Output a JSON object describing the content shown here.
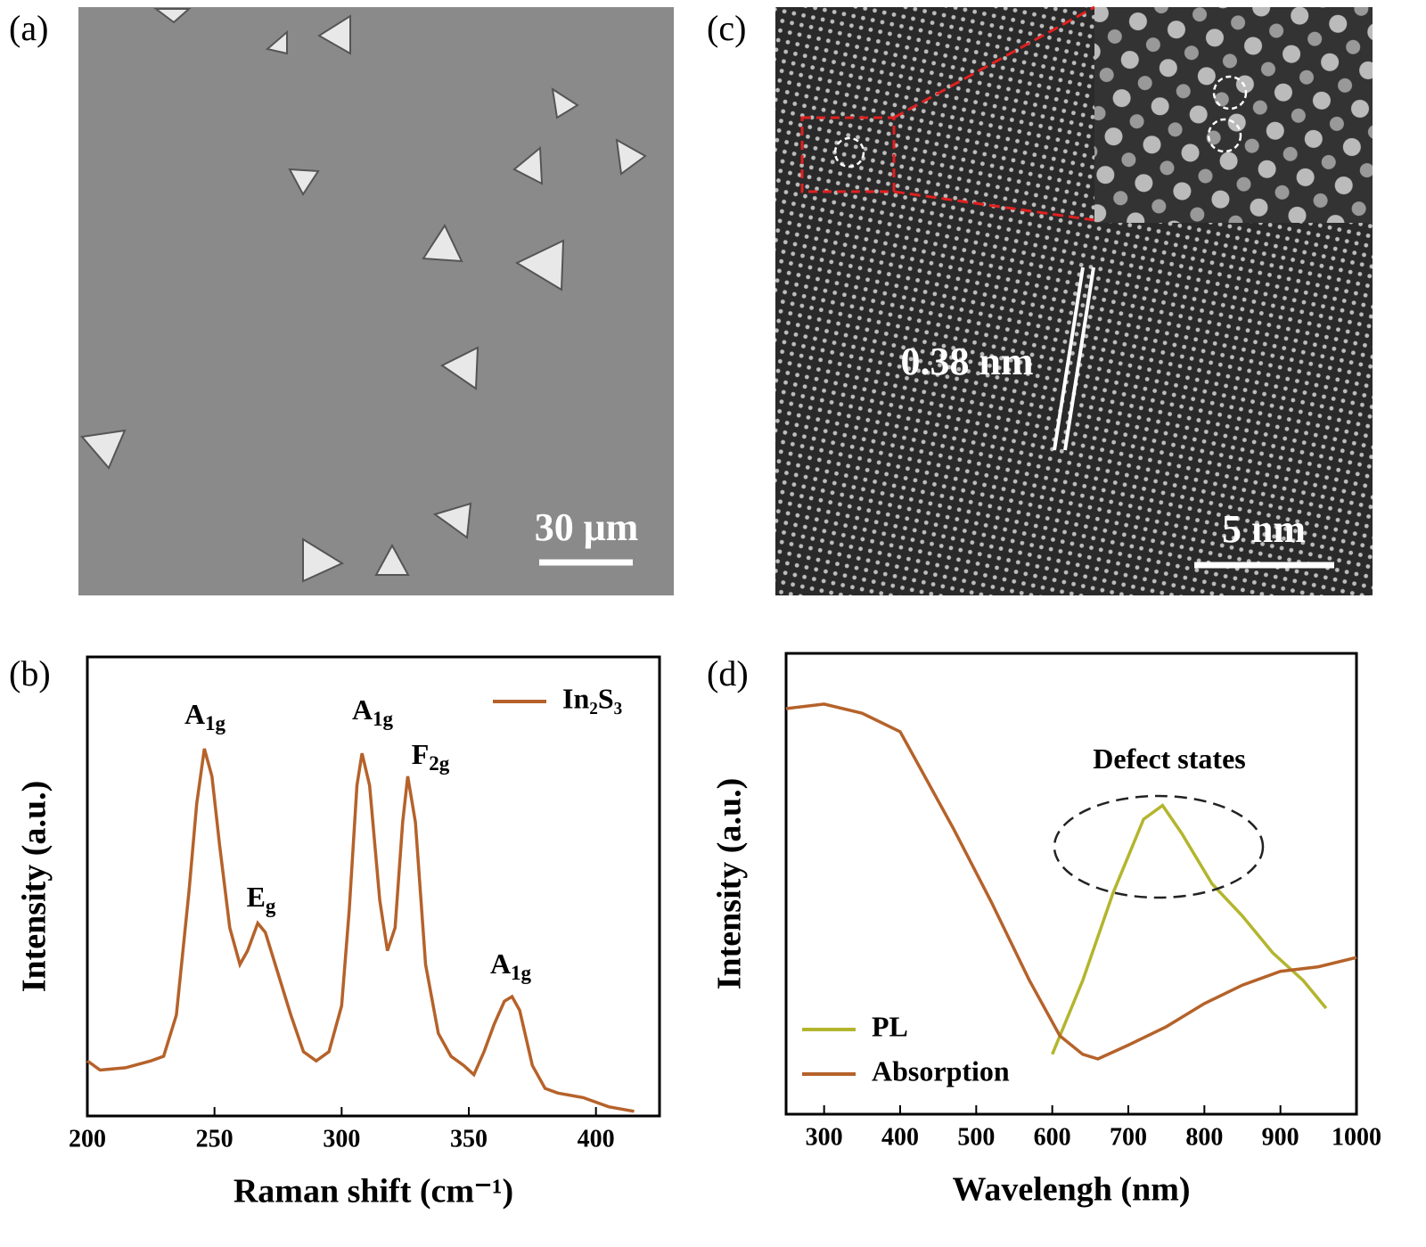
{
  "panels": {
    "a": {
      "label": "(a)",
      "scale_bar": "30 μm"
    },
    "b": {
      "label": "(b)"
    },
    "c": {
      "label": "(c)",
      "scale_bar": "5 nm",
      "annotation": "0.38 nm"
    },
    "d": {
      "label": "(d)"
    }
  },
  "chart_data": [
    {
      "type": "line",
      "xlabel": "Raman shift (cm⁻¹)",
      "ylabel": "Intensity (a.u.)",
      "xlim": [
        200,
        425
      ],
      "ylim": [
        0,
        100
      ],
      "xticks": [
        200,
        250,
        300,
        350,
        400
      ],
      "legend": "upper right",
      "series": [
        {
          "name": "In₂S₃",
          "color": "#b5622a",
          "x": [
            200,
            205,
            215,
            225,
            230,
            235,
            240,
            243,
            246,
            249,
            252,
            256,
            260,
            263,
            267,
            270,
            275,
            280,
            285,
            290,
            295,
            300,
            303,
            306,
            308,
            311,
            315,
            318,
            321,
            324,
            326,
            329,
            333,
            338,
            343,
            348,
            352,
            356,
            360,
            364,
            367,
            370,
            375,
            380,
            385,
            395,
            405,
            415
          ],
          "values": [
            12,
            10,
            10.5,
            12,
            13,
            22,
            49,
            68,
            80,
            74,
            59,
            41,
            33,
            36,
            42,
            40,
            31,
            22,
            14,
            12,
            14,
            24,
            45,
            72,
            79,
            72,
            47,
            36,
            41,
            64,
            74,
            64,
            33,
            18,
            13,
            11,
            9,
            14,
            20,
            25,
            26,
            23,
            11,
            6,
            5,
            4,
            2,
            1
          ]
        }
      ],
      "annotations": [
        {
          "text": "A",
          "sub": "1g"
        },
        {
          "text": "E",
          "sub": "g"
        },
        {
          "text": "A",
          "sub": "1g"
        },
        {
          "text": "F",
          "sub": "2g"
        },
        {
          "text": "A",
          "sub": "1g"
        }
      ]
    },
    {
      "type": "line",
      "xlabel": "Wavelengh (nm)",
      "ylabel": "Intensity (a.u.)",
      "xlim": [
        250,
        1000
      ],
      "ylim": [
        0,
        100
      ],
      "xticks": [
        300,
        400,
        500,
        600,
        700,
        800,
        900,
        1000
      ],
      "legend": "lower left",
      "series": [
        {
          "name": "PL",
          "color": "#b3b52e",
          "x": [
            600,
            640,
            680,
            720,
            745,
            770,
            810,
            850,
            890,
            930,
            960
          ],
          "values": [
            13,
            29,
            48,
            64,
            67,
            61,
            50,
            43,
            35,
            29,
            23
          ]
        },
        {
          "name": "Absorption",
          "color": "#b5622a",
          "x": [
            250,
            300,
            350,
            400,
            430,
            470,
            520,
            570,
            610,
            640,
            660,
            700,
            750,
            800,
            850,
            900,
            950,
            1000
          ],
          "values": [
            88,
            89,
            87,
            83,
            74,
            62,
            46,
            29,
            17,
            13,
            12,
            15,
            19,
            24,
            28,
            31,
            32,
            34
          ]
        }
      ],
      "annotations": [
        {
          "text": "Defect states"
        }
      ]
    }
  ]
}
